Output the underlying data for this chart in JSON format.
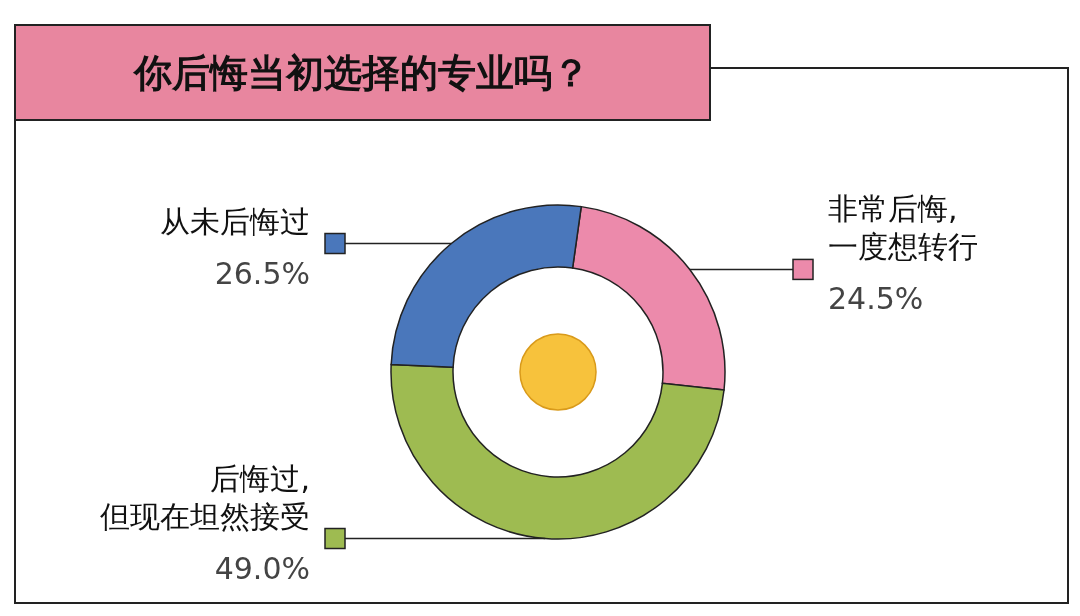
{
  "chart_data": {
    "type": "donut",
    "title": "你后悔当初选择的专业吗？",
    "categories": [
      "非常后悔,\n一度想转行",
      "后悔过,\n但现在坦然接受",
      "从未后悔过"
    ],
    "values": [
      24.5,
      49.0,
      26.5
    ],
    "colors": [
      "#ec8aab",
      "#9ebb51",
      "#4a77bb"
    ],
    "value_labels": [
      "24.5%",
      "49.0%",
      "26.5%"
    ]
  }
}
